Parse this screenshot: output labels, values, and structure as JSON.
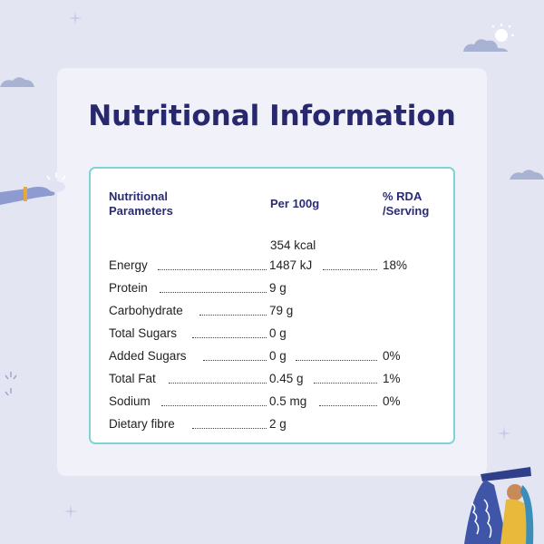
{
  "title": "Nutritional Information",
  "headers": {
    "parameters": "Nutritional\nParameters",
    "per100": "Per 100g",
    "rda": "% RDA\n/Serving"
  },
  "energy_kcal": "354 kcal",
  "rows": [
    {
      "label": "Energy",
      "value": "1487 kJ",
      "rda": "18%"
    },
    {
      "label": "Protein",
      "value": "9 g",
      "rda": ""
    },
    {
      "label": "Carbohydrate",
      "value": "79 g",
      "rda": ""
    },
    {
      "label": "Total Sugars",
      "value": "0 g",
      "rda": ""
    },
    {
      "label": "Added Sugars",
      "value": "0 g",
      "rda": "0%"
    },
    {
      "label": "Total Fat",
      "value": "0.45 g",
      "rda": "1%"
    },
    {
      "label": "Sodium",
      "value": "0.5 mg",
      "rda": "0%"
    },
    {
      "label": "Dietary fibre",
      "value": "2 g",
      "rda": ""
    }
  ],
  "colors": {
    "title": "#27286e",
    "border": "#7fd3d6",
    "background": "#e3e5f3"
  }
}
